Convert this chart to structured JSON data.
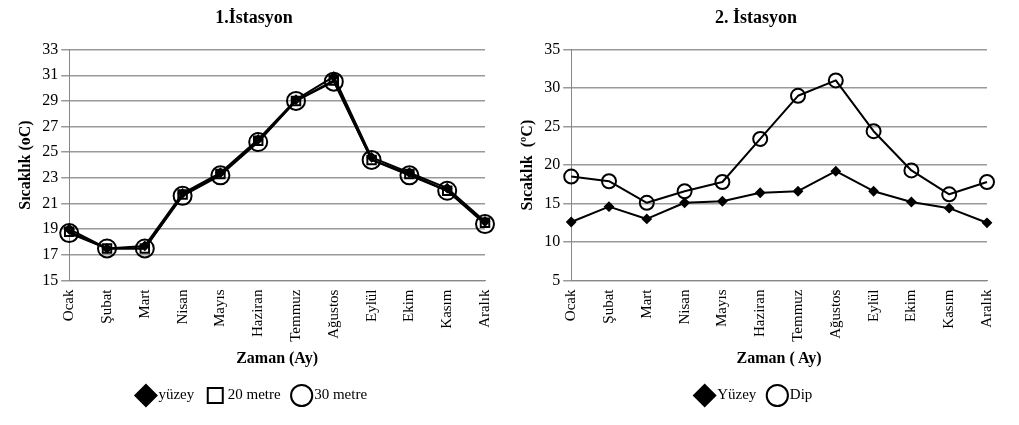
{
  "chart_data": [
    {
      "type": "line",
      "title": "1.İstasyon",
      "xlabel": "Zaman (Ay)",
      "ylabel": "Sıcaklık (oC)",
      "categories": [
        "Ocak",
        "Şubat",
        "Mart",
        "Nisan",
        "Mayıs",
        "Haziran",
        "Temmuz",
        "Ağustos",
        "Eylül",
        "Ekim",
        "Kasım",
        "Aralık"
      ],
      "series": [
        {
          "name": "yüzey",
          "color": "#000000",
          "marker": "diamond",
          "values": [
            19.0,
            17.5,
            17.7,
            21.8,
            23.4,
            26.0,
            29.1,
            30.9,
            24.6,
            23.4,
            22.2,
            19.6
          ]
        },
        {
          "name": "20 metre",
          "color": "#000000",
          "marker": "square",
          "values": [
            18.8,
            17.5,
            17.5,
            21.7,
            23.3,
            25.9,
            29.0,
            30.6,
            24.4,
            23.3,
            22.0,
            19.5
          ]
        },
        {
          "name": "30 metre",
          "color": "#000000",
          "marker": "circle",
          "values": [
            18.7,
            17.5,
            17.5,
            21.6,
            23.2,
            25.8,
            29.0,
            30.5,
            24.4,
            23.2,
            22.0,
            19.4
          ]
        }
      ],
      "ylim": [
        15,
        33
      ],
      "yticks": [
        15,
        17,
        19,
        21,
        23,
        25,
        27,
        29,
        31,
        33
      ],
      "grid": "y",
      "legend": "bottom",
      "line_style": "solid"
    },
    {
      "type": "line",
      "title": "2. İstasyon",
      "xlabel": "Zaman ( Ay)",
      "ylabel": "Sıcaklık  (ºC)",
      "categories": [
        "Ocak",
        "Şubat",
        "Mart",
        "Nisan",
        "Mayıs",
        "Haziran",
        "Temmuz",
        "Ağustos",
        "Eylül",
        "Ekim",
        "Kasım",
        "Aralık"
      ],
      "series": [
        {
          "name": "Yüzey",
          "color": "#000000",
          "marker": "diamond",
          "values": [
            12.6,
            14.6,
            13.0,
            15.1,
            15.3,
            16.4,
            16.6,
            19.2,
            16.6,
            15.2,
            14.4,
            12.5
          ]
        },
        {
          "name": "Dip",
          "color": "#000000",
          "marker": "circle",
          "values": [
            18.5,
            17.9,
            15.1,
            16.6,
            17.8,
            23.4,
            29.0,
            31.0,
            24.4,
            19.3,
            16.2,
            17.8
          ]
        }
      ],
      "ylim": [
        5,
        35
      ],
      "yticks": [
        5,
        10,
        15,
        20,
        25,
        30,
        35
      ],
      "grid": "y",
      "legend": "bottom",
      "line_style": "solid"
    }
  ]
}
